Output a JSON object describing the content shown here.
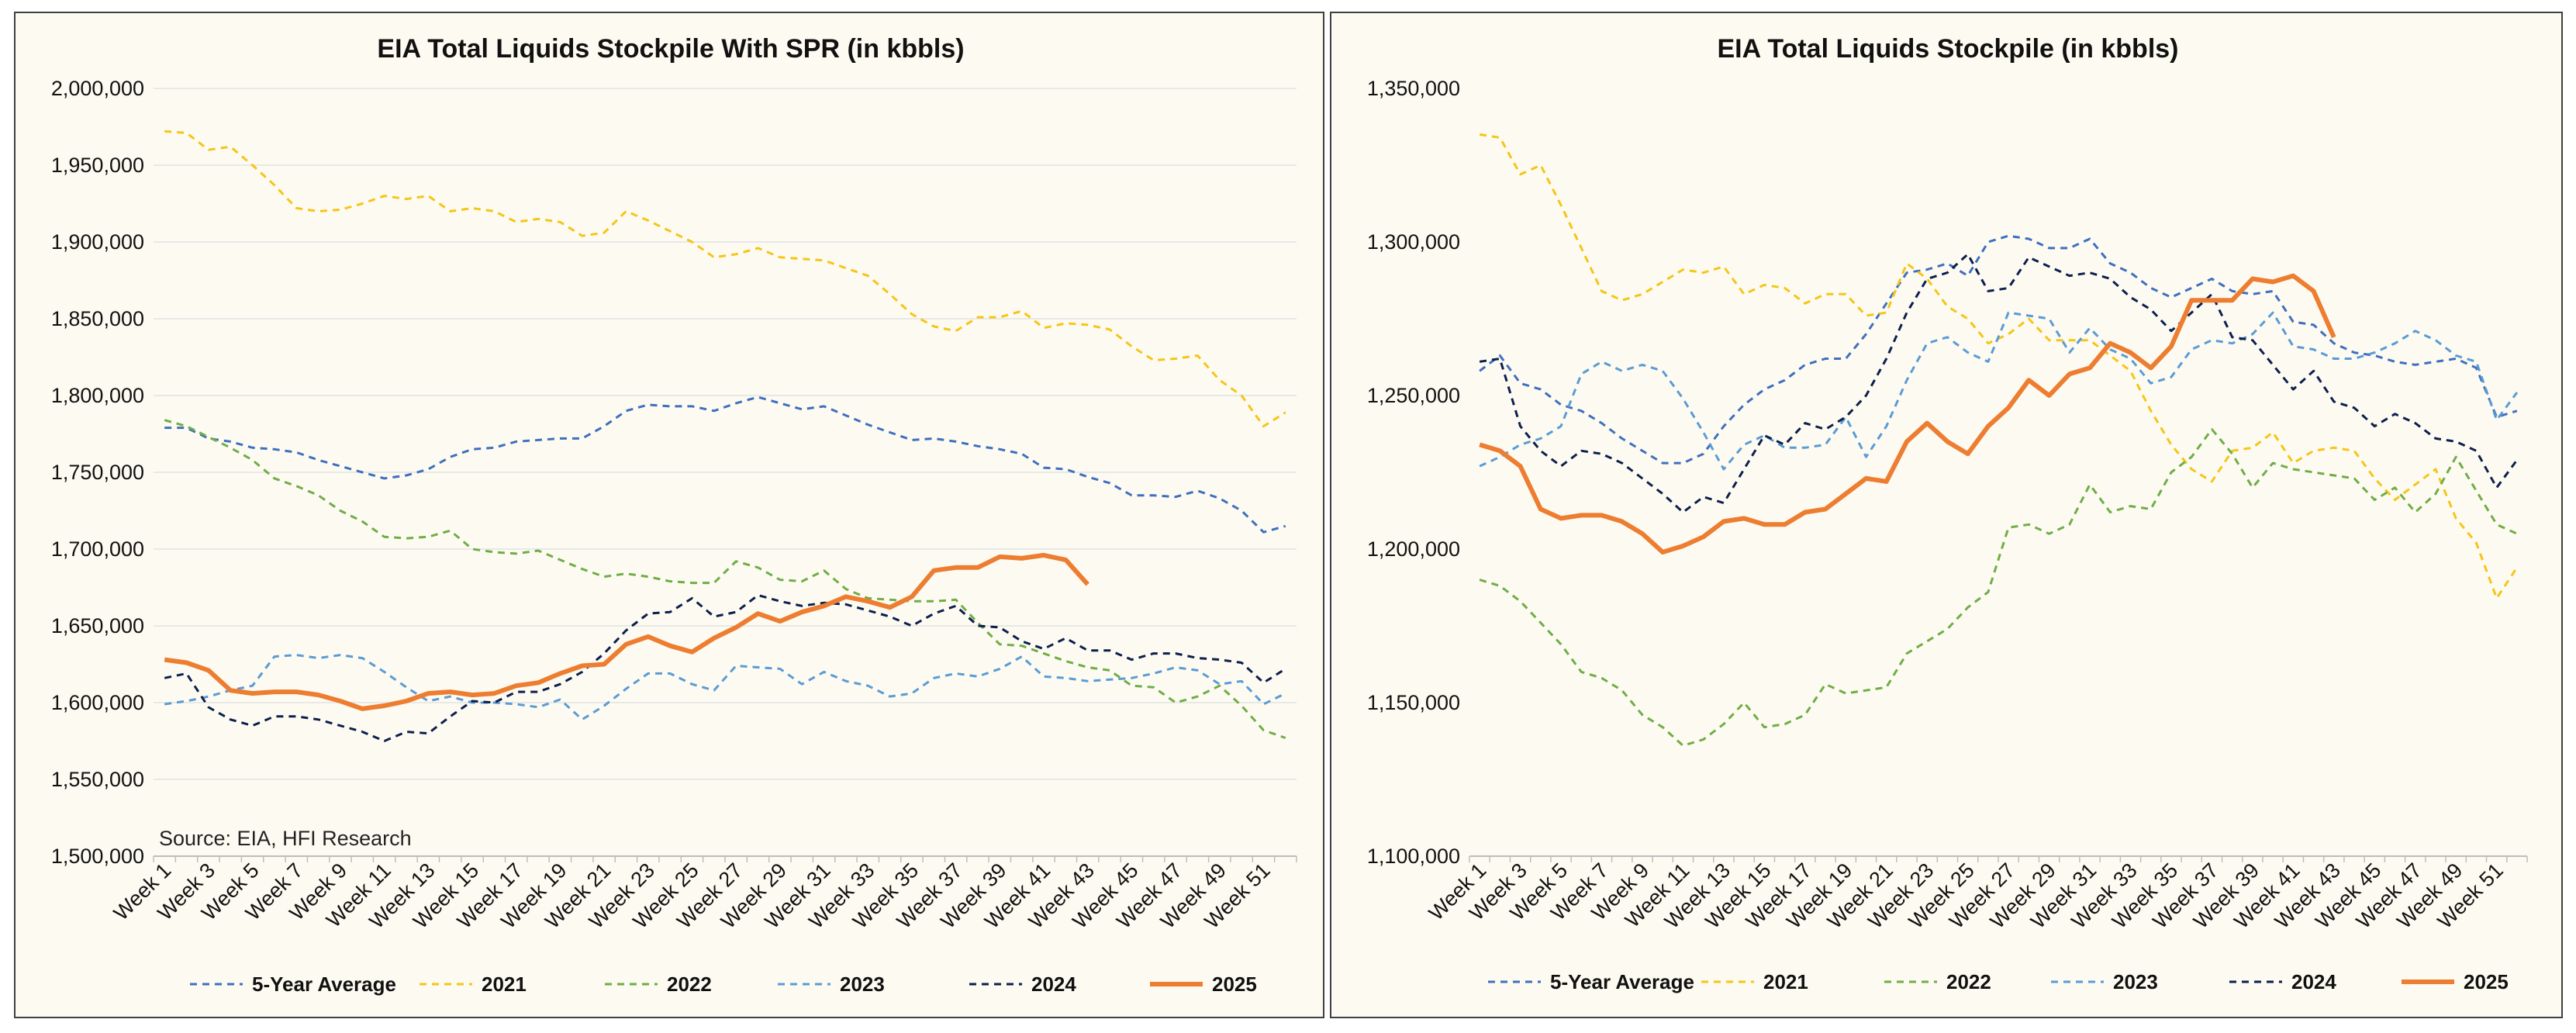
{
  "chart_data": [
    {
      "type": "line",
      "title": "EIA Total Liquids Stockpile With SPR (in kbbls)",
      "source_note": "Source: EIA, HFI Research",
      "ylim": [
        1500000,
        2000000
      ],
      "y_ticks": [
        "1,500,000",
        "1,550,000",
        "1,600,000",
        "1,650,000",
        "1,700,000",
        "1,750,000",
        "1,800,000",
        "1,850,000",
        "1,900,000",
        "1,950,000",
        "2,000,000"
      ],
      "x_tick_labels": [
        "Week 1",
        "Week 3",
        "Week 5",
        "Week 7",
        "Week 9",
        "Week 11",
        "Week 13",
        "Week 15",
        "Week 17",
        "Week 19",
        "Week 21",
        "Week 23",
        "Week 25",
        "Week 27",
        "Week 29",
        "Week 31",
        "Week 33",
        "Week 35",
        "Week 37",
        "Week 39",
        "Week 41",
        "Week 43",
        "Week 45",
        "Week 47",
        "Week 49",
        "Week 51"
      ],
      "n_weeks": 52,
      "grid": "horizontal",
      "legend_position": "bottom",
      "series": [
        {
          "name": "5-Year Average",
          "color": "#3f6fbf",
          "dash": "dashed",
          "values": [
            1779000,
            1779000,
            1772000,
            1770000,
            1766000,
            1765000,
            1763000,
            1758000,
            1754000,
            1750000,
            1746000,
            1748000,
            1752000,
            1760000,
            1765000,
            1766000,
            1770000,
            1771000,
            1772000,
            1772000,
            1780000,
            1790000,
            1794000,
            1793000,
            1793000,
            1790000,
            1795000,
            1799000,
            1795000,
            1791000,
            1793000,
            1787000,
            1781000,
            1776000,
            1771000,
            1772000,
            1770000,
            1767000,
            1765000,
            1762000,
            1753000,
            1752000,
            1747000,
            1743000,
            1735000,
            1735000,
            1734000,
            1738000,
            1733000,
            1725000,
            1711000,
            1715000
          ]
        },
        {
          "name": "2021",
          "color": "#f5c518",
          "dash": "dashed",
          "values": [
            1972000,
            1971000,
            1960000,
            1962000,
            1950000,
            1937000,
            1922000,
            1920000,
            1921000,
            1925000,
            1930000,
            1928000,
            1930000,
            1920000,
            1922000,
            1920000,
            1913000,
            1915000,
            1913000,
            1904000,
            1906000,
            1920000,
            1914000,
            1907000,
            1900000,
            1890000,
            1892000,
            1896000,
            1890000,
            1889000,
            1888000,
            1883000,
            1878000,
            1866000,
            1853000,
            1845000,
            1842000,
            1851000,
            1851000,
            1855000,
            1844000,
            1847000,
            1846000,
            1843000,
            1832000,
            1823000,
            1824000,
            1826000,
            1810000,
            1800000,
            1780000,
            1789000
          ]
        },
        {
          "name": "2022",
          "color": "#70ad47",
          "dash": "dashed",
          "values": [
            1784000,
            1780000,
            1773000,
            1766000,
            1758000,
            1746000,
            1741000,
            1735000,
            1725000,
            1718000,
            1708000,
            1707000,
            1708000,
            1712000,
            1700000,
            1698000,
            1697000,
            1699000,
            1693000,
            1687000,
            1682000,
            1684000,
            1682000,
            1679000,
            1678000,
            1678000,
            1692000,
            1688000,
            1680000,
            1679000,
            1686000,
            1674000,
            1668000,
            1667000,
            1666000,
            1666000,
            1667000,
            1652000,
            1638000,
            1637000,
            1632000,
            1627000,
            1623000,
            1621000,
            1611000,
            1610000,
            1600000,
            1604000,
            1611000,
            1598000,
            1582000,
            1577000
          ]
        },
        {
          "name": "2023",
          "color": "#5b9bd5",
          "dash": "dashed",
          "values": [
            1599000,
            1601000,
            1604000,
            1608000,
            1611000,
            1630000,
            1631000,
            1629000,
            1631000,
            1629000,
            1620000,
            1610000,
            1601000,
            1604000,
            1600000,
            1600000,
            1599000,
            1597000,
            1602000,
            1589000,
            1598000,
            1609000,
            1619000,
            1619000,
            1612000,
            1608000,
            1624000,
            1623000,
            1622000,
            1612000,
            1620000,
            1614000,
            1611000,
            1604000,
            1606000,
            1616000,
            1619000,
            1617000,
            1622000,
            1630000,
            1617000,
            1616000,
            1614000,
            1615000,
            1616000,
            1619000,
            1623000,
            1621000,
            1612000,
            1614000,
            1599000,
            1606000
          ]
        },
        {
          "name": "2024",
          "color": "#0c1f4d",
          "dash": "dashed",
          "values": [
            1616000,
            1619000,
            1597000,
            1589000,
            1585000,
            1591000,
            1591000,
            1589000,
            1585000,
            1581000,
            1575000,
            1581000,
            1580000,
            1591000,
            1601000,
            1600000,
            1607000,
            1607000,
            1612000,
            1620000,
            1632000,
            1647000,
            1658000,
            1659000,
            1668000,
            1656000,
            1659000,
            1670000,
            1666000,
            1663000,
            1665000,
            1664000,
            1660000,
            1656000,
            1650000,
            1658000,
            1663000,
            1650000,
            1649000,
            1640000,
            1635000,
            1642000,
            1634000,
            1634000,
            1628000,
            1632000,
            1632000,
            1629000,
            1628000,
            1626000,
            1613000,
            1622000
          ]
        },
        {
          "name": "2025",
          "color": "#ed7d31",
          "dash": "solid",
          "values": [
            1628000,
            1626000,
            1621000,
            1608000,
            1606000,
            1607000,
            1607000,
            1605000,
            1601000,
            1596000,
            1598000,
            1601000,
            1606000,
            1607000,
            1605000,
            1606000,
            1611000,
            1613000,
            1619000,
            1624000,
            1625000,
            1638000,
            1643000,
            1637000,
            1633000,
            1642000,
            1649000,
            1658000,
            1653000,
            1659000,
            1663000,
            1669000,
            1666000,
            1662000,
            1669000,
            1686000,
            1688000,
            1688000,
            1695000,
            1694000,
            1696000,
            1693000,
            1677000
          ]
        }
      ]
    },
    {
      "type": "line",
      "title": "EIA Total Liquids Stockpile (in kbbls)",
      "ylim": [
        1100000,
        1350000
      ],
      "y_ticks": [
        "1,100,000",
        "1,150,000",
        "1,200,000",
        "1,250,000",
        "1,300,000",
        "1,350,000"
      ],
      "x_tick_labels": [
        "Week 1",
        "Week 3",
        "Week 5",
        "Week 7",
        "Week 9",
        "Week 11",
        "Week 13",
        "Week 15",
        "Week 17",
        "Week 19",
        "Week 21",
        "Week 23",
        "Week 25",
        "Week 27",
        "Week 29",
        "Week 31",
        "Week 33",
        "Week 35",
        "Week 37",
        "Week 39",
        "Week 41",
        "Week 43",
        "Week 45",
        "Week 47",
        "Week 49",
        "Week 51"
      ],
      "n_weeks": 52,
      "grid": "none",
      "legend_position": "bottom",
      "series": [
        {
          "name": "5-Year Average",
          "color": "#3f6fbf",
          "dash": "dashed",
          "values": [
            1258000,
            1263000,
            1254000,
            1252000,
            1247000,
            1245000,
            1241000,
            1236000,
            1232000,
            1228000,
            1228000,
            1231000,
            1240000,
            1247000,
            1252000,
            1255000,
            1260000,
            1262000,
            1262000,
            1270000,
            1280000,
            1290000,
            1291000,
            1293000,
            1289000,
            1300000,
            1302000,
            1301000,
            1298000,
            1298000,
            1301000,
            1293000,
            1290000,
            1285000,
            1282000,
            1285000,
            1288000,
            1284000,
            1283000,
            1284000,
            1274000,
            1273000,
            1267000,
            1264000,
            1263000,
            1261000,
            1260000,
            1261000,
            1262000,
            1259000,
            1243000,
            1245000
          ]
        },
        {
          "name": "2021",
          "color": "#f5c518",
          "dash": "dashed",
          "values": [
            1335000,
            1334000,
            1322000,
            1325000,
            1312000,
            1298000,
            1284000,
            1281000,
            1283000,
            1287000,
            1291000,
            1290000,
            1292000,
            1283000,
            1286000,
            1285000,
            1280000,
            1283000,
            1283000,
            1276000,
            1277000,
            1293000,
            1288000,
            1279000,
            1275000,
            1267000,
            1270000,
            1275000,
            1268000,
            1268000,
            1268000,
            1263000,
            1258000,
            1245000,
            1234000,
            1226000,
            1222000,
            1232000,
            1233000,
            1238000,
            1228000,
            1232000,
            1233000,
            1232000,
            1223000,
            1216000,
            1221000,
            1226000,
            1210000,
            1202000,
            1184000,
            1194000
          ]
        },
        {
          "name": "2022",
          "color": "#70ad47",
          "dash": "dashed",
          "values": [
            1190000,
            1188000,
            1183000,
            1176000,
            1169000,
            1160000,
            1158000,
            1154000,
            1146000,
            1142000,
            1136000,
            1138000,
            1143000,
            1150000,
            1142000,
            1143000,
            1146000,
            1156000,
            1153000,
            1154000,
            1155000,
            1166000,
            1170000,
            1174000,
            1181000,
            1186000,
            1207000,
            1208000,
            1205000,
            1208000,
            1221000,
            1212000,
            1214000,
            1213000,
            1225000,
            1230000,
            1239000,
            1231000,
            1220000,
            1228000,
            1226000,
            1225000,
            1224000,
            1223000,
            1216000,
            1220000,
            1212000,
            1218000,
            1230000,
            1219000,
            1208000,
            1205000
          ]
        },
        {
          "name": "2023",
          "color": "#5b9bd5",
          "dash": "dashed",
          "values": [
            1227000,
            1230000,
            1234000,
            1236000,
            1240000,
            1257000,
            1261000,
            1258000,
            1260000,
            1258000,
            1249000,
            1238000,
            1226000,
            1234000,
            1237000,
            1233000,
            1233000,
            1234000,
            1243000,
            1230000,
            1240000,
            1255000,
            1267000,
            1269000,
            1264000,
            1261000,
            1277000,
            1276000,
            1275000,
            1264000,
            1272000,
            1265000,
            1262000,
            1254000,
            1256000,
            1265000,
            1268000,
            1267000,
            1270000,
            1277000,
            1266000,
            1265000,
            1262000,
            1262000,
            1264000,
            1267000,
            1271000,
            1268000,
            1263000,
            1261000,
            1242000,
            1251000
          ]
        },
        {
          "name": "2024",
          "color": "#0c1f4d",
          "dash": "dashed",
          "values": [
            1261000,
            1262000,
            1240000,
            1232000,
            1227000,
            1232000,
            1231000,
            1228000,
            1223000,
            1218000,
            1212000,
            1217000,
            1215000,
            1226000,
            1237000,
            1234000,
            1241000,
            1239000,
            1243000,
            1250000,
            1262000,
            1277000,
            1288000,
            1290000,
            1296000,
            1284000,
            1285000,
            1295000,
            1292000,
            1289000,
            1290000,
            1288000,
            1282000,
            1278000,
            1271000,
            1277000,
            1283000,
            1269000,
            1268000,
            1260000,
            1252000,
            1258000,
            1248000,
            1246000,
            1240000,
            1244000,
            1241000,
            1236000,
            1235000,
            1232000,
            1220000,
            1229000
          ]
        },
        {
          "name": "2025",
          "color": "#ed7d31",
          "dash": "solid",
          "values": [
            1234000,
            1232000,
            1227000,
            1213000,
            1210000,
            1211000,
            1211000,
            1209000,
            1205000,
            1199000,
            1201000,
            1204000,
            1209000,
            1210000,
            1208000,
            1208000,
            1212000,
            1213000,
            1218000,
            1223000,
            1222000,
            1235000,
            1241000,
            1235000,
            1231000,
            1240000,
            1246000,
            1255000,
            1250000,
            1257000,
            1259000,
            1267000,
            1264000,
            1259000,
            1266000,
            1281000,
            1281000,
            1281000,
            1288000,
            1287000,
            1289000,
            1284000,
            1269000
          ]
        }
      ]
    }
  ]
}
